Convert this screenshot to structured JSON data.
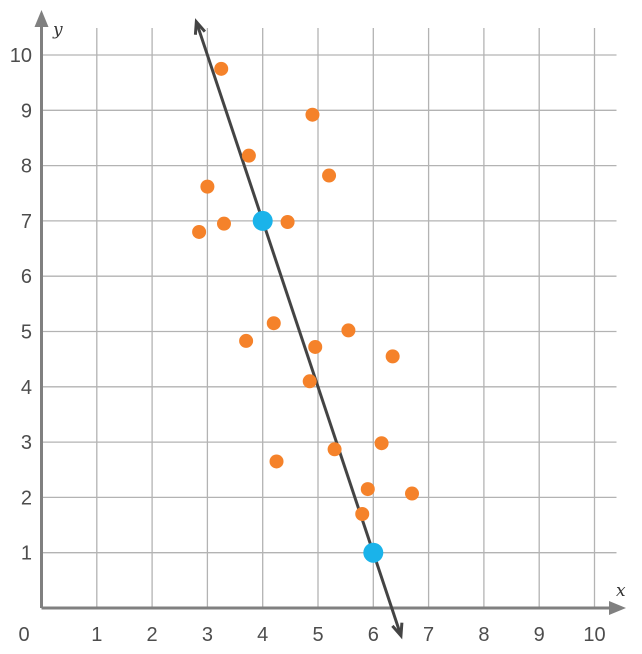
{
  "chart_data": {
    "type": "scatter",
    "xlabel": "x",
    "ylabel": "y",
    "xlim": [
      0,
      10
    ],
    "ylim": [
      0,
      10
    ],
    "grid": true,
    "x_ticks": [
      "0",
      "1",
      "2",
      "3",
      "4",
      "5",
      "6",
      "7",
      "8",
      "9",
      "10"
    ],
    "y_ticks": [
      "1",
      "2",
      "3",
      "4",
      "5",
      "6",
      "7",
      "8",
      "9",
      "10"
    ],
    "series": [
      {
        "color": "#f5822a",
        "points": [
          [
            3.25,
            9.75
          ],
          [
            4.9,
            8.92
          ],
          [
            3.75,
            8.18
          ],
          [
            5.2,
            7.82
          ],
          [
            3.0,
            7.62
          ],
          [
            3.3,
            6.95
          ],
          [
            4.45,
            6.98
          ],
          [
            2.85,
            6.8
          ],
          [
            4.2,
            5.15
          ],
          [
            5.55,
            5.02
          ],
          [
            3.7,
            4.83
          ],
          [
            4.95,
            4.72
          ],
          [
            6.35,
            4.55
          ],
          [
            4.85,
            4.1
          ],
          [
            6.15,
            2.98
          ],
          [
            5.3,
            2.87
          ],
          [
            4.25,
            2.65
          ],
          [
            5.9,
            2.15
          ],
          [
            6.7,
            2.07
          ],
          [
            5.8,
            1.7
          ]
        ]
      },
      {
        "color": "#1ab3ea",
        "points": [
          [
            4,
            7
          ],
          [
            6,
            1
          ]
        ]
      }
    ],
    "trend_line": {
      "color": "#444444",
      "from": [
        2.8,
        10.6
      ],
      "to": [
        6.5,
        -0.5
      ]
    },
    "colors": {
      "grid": "#b3b3b3",
      "axis": "#808080",
      "tick_text": "#4d4d4d"
    }
  }
}
